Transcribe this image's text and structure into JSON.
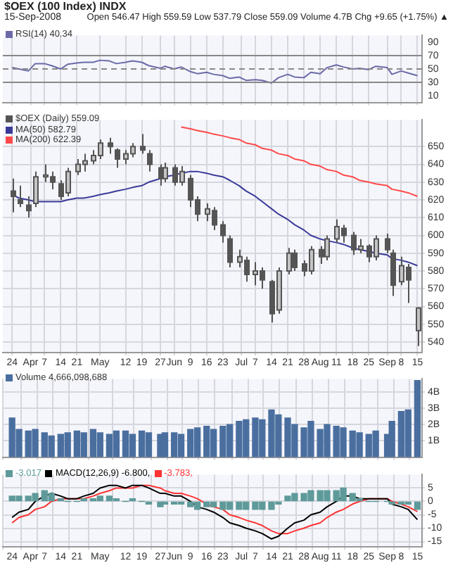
{
  "chart_data": [
    {
      "type": "line",
      "title": "$OEX (100 Index) INDX",
      "subtitle": "15-Sep-2008",
      "annotations": [
        "Open 546.47  High 559.59  Low 537.79  Close 559.09  Volume 4.7B  Chg +9.65 (+1.75%) ▲"
      ],
      "x": [
        "2008-03-24",
        "2008-03-27",
        "2008-03-31",
        "2008-04-03",
        "2008-04-07",
        "2008-04-10",
        "2008-04-14",
        "2008-04-17",
        "2008-04-21",
        "2008-04-24",
        "2008-04-28",
        "2008-05-01",
        "2008-05-05",
        "2008-05-08",
        "2008-05-12",
        "2008-05-15",
        "2008-05-19",
        "2008-05-22",
        "2008-05-27",
        "2008-05-29",
        "2008-06-02",
        "2008-06-05",
        "2008-06-09",
        "2008-06-12",
        "2008-06-16",
        "2008-06-19",
        "2008-06-23",
        "2008-06-26",
        "2008-06-30",
        "2008-07-03",
        "2008-07-07",
        "2008-07-10",
        "2008-07-14",
        "2008-07-17",
        "2008-07-21",
        "2008-07-24",
        "2008-07-28",
        "2008-07-31",
        "2008-08-04",
        "2008-08-07",
        "2008-08-11",
        "2008-08-14",
        "2008-08-18",
        "2008-08-21",
        "2008-08-25",
        "2008-08-28",
        "2008-09-02",
        "2008-09-04",
        "2008-09-08",
        "2008-09-11",
        "2008-09-15"
      ],
      "series": [
        {
          "name": "RSI(14) 40.34",
          "color": "#6a6aa8",
          "values": [
            52,
            50,
            47,
            58,
            58,
            55,
            50,
            57,
            59,
            60,
            60,
            63,
            62,
            58,
            60,
            62,
            60,
            55,
            51,
            54,
            50,
            53,
            46,
            43,
            45,
            42,
            40,
            36,
            38,
            33,
            34,
            33,
            29,
            37,
            42,
            38,
            37,
            45,
            43,
            52,
            56,
            53,
            50,
            51,
            49,
            54,
            52,
            42,
            47,
            44,
            40
          ]
        }
      ],
      "xlim": [
        "2008-03-20",
        "2008-09-17"
      ],
      "xticks": [
        {
          "value": "2008-03-24",
          "label": null
        },
        {
          "value": "2008-04-01",
          "label": null
        },
        {
          "value": "2008-04-07",
          "label": null
        },
        {
          "value": "2008-04-14",
          "label": null
        },
        {
          "value": "2008-04-21",
          "label": null
        },
        {
          "value": "2008-05-01",
          "label": null
        },
        {
          "value": "2008-05-12",
          "label": null
        },
        {
          "value": "2008-05-19",
          "label": null
        },
        {
          "value": "2008-05-27",
          "label": null
        },
        {
          "value": "2008-06-02",
          "label": null
        },
        {
          "value": "2008-06-09",
          "label": null
        },
        {
          "value": "2008-06-16",
          "label": null
        },
        {
          "value": "2008-06-23",
          "label": null
        },
        {
          "value": "2008-07-01",
          "label": null
        },
        {
          "value": "2008-07-07",
          "label": null
        },
        {
          "value": "2008-07-14",
          "label": null
        },
        {
          "value": "2008-07-21",
          "label": null
        },
        {
          "value": "2008-07-28",
          "label": null
        },
        {
          "value": "2008-08-04",
          "label": null
        },
        {
          "value": "2008-08-11",
          "label": null
        },
        {
          "value": "2008-08-18",
          "label": null
        },
        {
          "value": "2008-08-25",
          "label": null
        },
        {
          "value": "2008-09-02",
          "label": null
        },
        {
          "value": "2008-09-08",
          "label": null
        },
        {
          "value": "2008-09-15",
          "label": null
        }
      ],
      "ylim": [
        0,
        100
      ],
      "yticks": [
        10,
        30,
        50,
        70,
        90
      ],
      "ref_lines": [
        {
          "axis": "y",
          "value": 70,
          "color": "#888888",
          "line_style": "solid"
        },
        {
          "axis": "y",
          "value": 50,
          "color": "#888888",
          "line_style": "dashed"
        },
        {
          "axis": "y",
          "value": 30,
          "color": "#888888",
          "line_style": "solid"
        }
      ],
      "grid": "x",
      "legend": "top left",
      "tick_labels": "y"
    },
    {
      "type": "candlestick",
      "title": "$OEX (Daily) 559.09",
      "color": "#555555",
      "colors": [
        "#555555",
        "#555555",
        "#555555",
        "#c4c4c4",
        "#c4c4c4",
        "#555555",
        "#555555",
        "#c4c4c4",
        "#c4c4c4",
        "#c4c4c4",
        "#c4c4c4",
        "#c4c4c4",
        "#555555",
        "#555555",
        "#c4c4c4",
        "#c4c4c4",
        "#555555",
        "#555555",
        "#555555",
        "#c4c4c4",
        "#555555",
        "#c4c4c4",
        "#555555",
        "#555555",
        "#c4c4c4",
        "#555555",
        "#555555",
        "#555555",
        "#c4c4c4",
        "#555555",
        "#c4c4c4",
        "#555555",
        "#555555",
        "#c4c4c4",
        "#c4c4c4",
        "#555555",
        "#555555",
        "#c4c4c4",
        "#555555",
        "#c4c4c4",
        "#c4c4c4",
        "#555555",
        "#555555",
        "#c4c4c4",
        "#555555",
        "#c4c4c4",
        "#555555",
        "#555555",
        "#c4c4c4",
        "#555555",
        "#c4c4c4"
      ],
      "x": [
        "2008-03-24",
        "2008-03-27",
        "2008-03-31",
        "2008-04-03",
        "2008-04-07",
        "2008-04-10",
        "2008-04-14",
        "2008-04-17",
        "2008-04-21",
        "2008-04-24",
        "2008-04-28",
        "2008-05-01",
        "2008-05-05",
        "2008-05-08",
        "2008-05-12",
        "2008-05-15",
        "2008-05-19",
        "2008-05-22",
        "2008-05-27",
        "2008-05-29",
        "2008-06-02",
        "2008-06-05",
        "2008-06-09",
        "2008-06-12",
        "2008-06-16",
        "2008-06-19",
        "2008-06-23",
        "2008-06-26",
        "2008-06-30",
        "2008-07-03",
        "2008-07-07",
        "2008-07-10",
        "2008-07-14",
        "2008-07-17",
        "2008-07-21",
        "2008-07-24",
        "2008-07-28",
        "2008-07-31",
        "2008-08-04",
        "2008-08-07",
        "2008-08-11",
        "2008-08-14",
        "2008-08-18",
        "2008-08-21",
        "2008-08-25",
        "2008-08-28",
        "2008-09-02",
        "2008-09-04",
        "2008-09-08",
        "2008-09-11",
        "2008-09-15"
      ],
      "ohlc": [
        [
          625,
          632,
          613,
          622
        ],
        [
          620,
          628,
          616,
          618
        ],
        [
          617,
          622,
          610,
          614
        ],
        [
          618,
          636,
          616,
          633
        ],
        [
          633,
          640,
          630,
          634
        ],
        [
          633,
          636,
          626,
          630
        ],
        [
          629,
          631,
          620,
          622
        ],
        [
          624,
          638,
          622,
          636
        ],
        [
          636,
          643,
          634,
          640
        ],
        [
          640,
          646,
          636,
          642
        ],
        [
          642,
          648,
          640,
          645
        ],
        [
          645,
          654,
          643,
          652
        ],
        [
          652,
          655,
          646,
          650
        ],
        [
          648,
          649,
          638,
          643
        ],
        [
          643,
          648,
          640,
          646
        ],
        [
          646,
          652,
          644,
          650
        ],
        [
          650,
          657,
          646,
          648
        ],
        [
          646,
          648,
          636,
          640
        ],
        [
          638,
          640,
          628,
          632
        ],
        [
          632,
          641,
          630,
          638
        ],
        [
          638,
          640,
          628,
          630
        ],
        [
          630,
          639,
          628,
          636
        ],
        [
          632,
          634,
          616,
          620
        ],
        [
          620,
          622,
          608,
          612
        ],
        [
          612,
          618,
          608,
          615
        ],
        [
          614,
          616,
          603,
          606
        ],
        [
          606,
          608,
          596,
          600
        ],
        [
          598,
          600,
          582,
          585
        ],
        [
          585,
          592,
          582,
          588
        ],
        [
          586,
          588,
          574,
          578
        ],
        [
          578,
          585,
          572,
          580
        ],
        [
          580,
          582,
          570,
          575
        ],
        [
          574,
          575,
          551,
          556
        ],
        [
          558,
          582,
          556,
          580
        ],
        [
          580,
          593,
          578,
          590
        ],
        [
          590,
          592,
          580,
          582
        ],
        [
          584,
          586,
          577,
          580
        ],
        [
          580,
          594,
          578,
          592
        ],
        [
          592,
          594,
          584,
          588
        ],
        [
          588,
          600,
          586,
          598
        ],
        [
          598,
          609,
          596,
          605
        ],
        [
          604,
          606,
          596,
          600
        ],
        [
          600,
          602,
          589,
          592
        ],
        [
          592,
          598,
          590,
          594
        ],
        [
          594,
          595,
          585,
          588
        ],
        [
          588,
          600,
          586,
          598
        ],
        [
          598,
          601,
          590,
          592
        ],
        [
          590,
          592,
          566,
          572
        ],
        [
          574,
          588,
          572,
          583
        ],
        [
          582,
          584,
          562,
          575
        ],
        [
          546.47,
          559.59,
          537.79,
          559.09
        ]
      ],
      "series": [
        {
          "name": "MA(50) 582.79",
          "type": "line",
          "color": "#3a3a9a",
          "values": [
            623,
            621,
            620,
            619,
            619,
            619,
            619,
            620,
            621,
            621,
            622,
            623,
            624,
            625,
            626,
            627,
            628,
            630,
            632,
            633,
            634,
            635,
            636,
            636,
            635,
            634,
            633,
            631,
            628,
            625,
            622,
            619,
            615,
            612,
            609,
            606,
            603,
            600,
            598,
            597,
            596,
            595,
            593,
            592,
            591,
            590,
            589,
            587,
            586,
            585,
            583
          ]
        },
        {
          "name": "MA(200) 622.39",
          "type": "line",
          "color": "#ff4a4a",
          "values": [
            null,
            null,
            null,
            null,
            null,
            null,
            null,
            null,
            null,
            null,
            null,
            null,
            null,
            null,
            null,
            null,
            null,
            null,
            null,
            null,
            null,
            661,
            660,
            659,
            658,
            657,
            656,
            655,
            654,
            652,
            651,
            649,
            648,
            646,
            645,
            643,
            642,
            640,
            639,
            637,
            636,
            634,
            633,
            631,
            630,
            629,
            628,
            626,
            625,
            624,
            622
          ]
        }
      ],
      "xlim": [
        "2008-03-20",
        "2008-09-17"
      ],
      "xticks": [
        {
          "value": "2008-03-24",
          "label": "24"
        },
        {
          "value": "2008-04-01",
          "label": "Apr"
        },
        {
          "value": "2008-04-07",
          "label": "7"
        },
        {
          "value": "2008-04-14",
          "label": "14"
        },
        {
          "value": "2008-04-21",
          "label": "21"
        },
        {
          "value": "2008-05-01",
          "label": "May"
        },
        {
          "value": "2008-05-12",
          "label": "12"
        },
        {
          "value": "2008-05-19",
          "label": "19"
        },
        {
          "value": "2008-05-27",
          "label": "27"
        },
        {
          "value": "2008-06-02",
          "label": "Jun"
        },
        {
          "value": "2008-06-09",
          "label": "9"
        },
        {
          "value": "2008-06-16",
          "label": "16"
        },
        {
          "value": "2008-06-23",
          "label": "23"
        },
        {
          "value": "2008-07-01",
          "label": "Jul"
        },
        {
          "value": "2008-07-07",
          "label": "7"
        },
        {
          "value": "2008-07-14",
          "label": "14"
        },
        {
          "value": "2008-07-21",
          "label": "21"
        },
        {
          "value": "2008-07-28",
          "label": "28"
        },
        {
          "value": "2008-08-04",
          "label": "Aug"
        },
        {
          "value": "2008-08-11",
          "label": "11"
        },
        {
          "value": "2008-08-18",
          "label": "18"
        },
        {
          "value": "2008-08-25",
          "label": "25"
        },
        {
          "value": "2008-09-02",
          "label": "Sep"
        },
        {
          "value": "2008-09-08",
          "label": "8"
        },
        {
          "value": "2008-09-15",
          "label": "15"
        }
      ],
      "ylim": [
        534,
        665
      ],
      "yticks": [
        540,
        550,
        560,
        570,
        580,
        590,
        600,
        610,
        620,
        630,
        640,
        650
      ],
      "grid": true,
      "legend": "top left"
    },
    {
      "type": "bar",
      "x": [
        "2008-03-24",
        "2008-03-27",
        "2008-03-31",
        "2008-04-03",
        "2008-04-07",
        "2008-04-10",
        "2008-04-14",
        "2008-04-17",
        "2008-04-21",
        "2008-04-24",
        "2008-04-28",
        "2008-05-01",
        "2008-05-05",
        "2008-05-08",
        "2008-05-12",
        "2008-05-15",
        "2008-05-19",
        "2008-05-22",
        "2008-05-27",
        "2008-05-29",
        "2008-06-02",
        "2008-06-05",
        "2008-06-09",
        "2008-06-12",
        "2008-06-16",
        "2008-06-19",
        "2008-06-23",
        "2008-06-26",
        "2008-06-30",
        "2008-07-03",
        "2008-07-07",
        "2008-07-10",
        "2008-07-14",
        "2008-07-17",
        "2008-07-21",
        "2008-07-24",
        "2008-07-28",
        "2008-07-31",
        "2008-08-04",
        "2008-08-07",
        "2008-08-11",
        "2008-08-14",
        "2008-08-18",
        "2008-08-21",
        "2008-08-25",
        "2008-08-28",
        "2008-09-02",
        "2008-09-04",
        "2008-09-08",
        "2008-09-11",
        "2008-09-15"
      ],
      "series": [
        {
          "name": "Volume 4,666,098,688",
          "color": "#4a6f9f",
          "values": [
            2.4,
            1.7,
            1.6,
            1.7,
            1.5,
            1.3,
            1.4,
            1.5,
            1.6,
            1.5,
            1.7,
            1.5,
            1.4,
            1.6,
            1.6,
            1.4,
            1.6,
            1.5,
            1.4,
            1.5,
            1.5,
            1.4,
            1.7,
            1.8,
            1.9,
            1.7,
            1.9,
            2.0,
            2.2,
            2.3,
            2.4,
            2.3,
            2.9,
            2.6,
            2.4,
            2.0,
            1.8,
            2.2,
            1.7,
            2.0,
            1.9,
            1.8,
            1.6,
            1.5,
            1.4,
            1.6,
            1.4,
            2.2,
            2.8,
            2.9,
            4.7
          ]
        }
      ],
      "xlim": [
        "2008-03-20",
        "2008-09-17"
      ],
      "xticks": [
        {
          "value": "2008-03-24",
          "label": null
        },
        {
          "value": "2008-04-01",
          "label": null
        },
        {
          "value": "2008-04-07",
          "label": null
        },
        {
          "value": "2008-04-14",
          "label": null
        },
        {
          "value": "2008-04-21",
          "label": null
        },
        {
          "value": "2008-05-01",
          "label": null
        },
        {
          "value": "2008-05-12",
          "label": null
        },
        {
          "value": "2008-05-19",
          "label": null
        },
        {
          "value": "2008-05-27",
          "label": null
        },
        {
          "value": "2008-06-02",
          "label": null
        },
        {
          "value": "2008-06-09",
          "label": null
        },
        {
          "value": "2008-06-16",
          "label": null
        },
        {
          "value": "2008-06-23",
          "label": null
        },
        {
          "value": "2008-07-01",
          "label": null
        },
        {
          "value": "2008-07-07",
          "label": null
        },
        {
          "value": "2008-07-14",
          "label": null
        },
        {
          "value": "2008-07-21",
          "label": null
        },
        {
          "value": "2008-07-28",
          "label": null
        },
        {
          "value": "2008-08-04",
          "label": null
        },
        {
          "value": "2008-08-11",
          "label": null
        },
        {
          "value": "2008-08-18",
          "label": null
        },
        {
          "value": "2008-08-25",
          "label": null
        },
        {
          "value": "2008-09-02",
          "label": null
        },
        {
          "value": "2008-09-08",
          "label": null
        },
        {
          "value": "2008-09-15",
          "label": null
        }
      ],
      "ylim": [
        0,
        4.8
      ],
      "yticks": [
        {
          "value": 1,
          "label": "1B"
        },
        {
          "value": 2,
          "label": "2B"
        },
        {
          "value": 3,
          "label": "3B"
        },
        {
          "value": 4,
          "label": "4B"
        }
      ],
      "grid": true,
      "legend": "top left",
      "tick_labels": "y"
    },
    {
      "type": "line",
      "x": [
        "2008-03-24",
        "2008-03-27",
        "2008-03-31",
        "2008-04-03",
        "2008-04-07",
        "2008-04-10",
        "2008-04-14",
        "2008-04-17",
        "2008-04-21",
        "2008-04-24",
        "2008-04-28",
        "2008-05-01",
        "2008-05-05",
        "2008-05-08",
        "2008-05-12",
        "2008-05-15",
        "2008-05-19",
        "2008-05-22",
        "2008-05-27",
        "2008-05-29",
        "2008-06-02",
        "2008-06-05",
        "2008-06-09",
        "2008-06-12",
        "2008-06-16",
        "2008-06-19",
        "2008-06-23",
        "2008-06-26",
        "2008-06-30",
        "2008-07-03",
        "2008-07-07",
        "2008-07-10",
        "2008-07-14",
        "2008-07-17",
        "2008-07-21",
        "2008-07-24",
        "2008-07-28",
        "2008-07-31",
        "2008-08-04",
        "2008-08-07",
        "2008-08-11",
        "2008-08-14",
        "2008-08-18",
        "2008-08-21",
        "2008-08-25",
        "2008-08-28",
        "2008-09-02",
        "2008-09-04",
        "2008-09-08",
        "2008-09-11",
        "2008-09-15"
      ],
      "series": [
        {
          "name": "-3.017",
          "type": "bar",
          "color": "#5f9a9a",
          "values": [
            2,
            2,
            2,
            3,
            4,
            3,
            1,
            0,
            0,
            1,
            1,
            2,
            2,
            1,
            0,
            1,
            0,
            -1,
            -2,
            -1,
            -1,
            -1,
            -2,
            -3,
            -2,
            -2,
            -3,
            -3,
            -3,
            -3,
            -3,
            -3,
            -3,
            -1,
            2,
            3,
            3,
            4,
            4,
            4,
            4,
            5,
            3,
            1,
            0,
            0,
            0,
            -1,
            -1,
            -1,
            -3
          ]
        },
        {
          "name": "MACD(12,26,9) -6.800,",
          "type": "line",
          "color": "#000000",
          "values": [
            -6,
            -4,
            -3,
            0,
            2,
            3,
            2,
            1,
            1,
            2,
            3,
            5,
            6,
            6,
            5,
            6,
            6,
            5,
            3,
            3,
            2,
            2,
            0,
            -2,
            -3,
            -4,
            -6,
            -8,
            -9,
            -10,
            -11,
            -12,
            -14,
            -13,
            -10,
            -8,
            -7,
            -5,
            -4,
            -2,
            0,
            2,
            2,
            1,
            1,
            1,
            1,
            -1,
            -2,
            -3,
            -6.8
          ]
        },
        {
          "name": "-3.783,",
          "type": "line",
          "color": "#ff3333",
          "values": [
            -8,
            -6,
            -5,
            -3,
            -2,
            0,
            1,
            1,
            1,
            1,
            2,
            3,
            4,
            5,
            5,
            5,
            6,
            6,
            5,
            4,
            3,
            3,
            2,
            1,
            -1,
            -2,
            -3,
            -5,
            -6,
            -7,
            -8,
            -9,
            -11,
            -12,
            -12,
            -11,
            -10,
            -9,
            -8,
            -6,
            -4,
            -3,
            -1,
            0,
            1,
            1,
            1,
            0,
            -1,
            -2,
            -3.8
          ]
        }
      ],
      "xlim": [
        "2008-03-20",
        "2008-09-17"
      ],
      "xticks": [
        {
          "value": "2008-03-24",
          "label": "24"
        },
        {
          "value": "2008-04-01",
          "label": "Apr"
        },
        {
          "value": "2008-04-07",
          "label": "7"
        },
        {
          "value": "2008-04-14",
          "label": "14"
        },
        {
          "value": "2008-04-21",
          "label": "21"
        },
        {
          "value": "2008-05-01",
          "label": "May"
        },
        {
          "value": "2008-05-12",
          "label": "12"
        },
        {
          "value": "2008-05-19",
          "label": "19"
        },
        {
          "value": "2008-05-27",
          "label": "27"
        },
        {
          "value": "2008-06-02",
          "label": "Jun"
        },
        {
          "value": "2008-06-09",
          "label": "9"
        },
        {
          "value": "2008-06-16",
          "label": "16"
        },
        {
          "value": "2008-06-23",
          "label": "23"
        },
        {
          "value": "2008-07-01",
          "label": "Jul"
        },
        {
          "value": "2008-07-07",
          "label": "7"
        },
        {
          "value": "2008-07-14",
          "label": "14"
        },
        {
          "value": "2008-07-21",
          "label": "21"
        },
        {
          "value": "2008-07-28",
          "label": "28"
        },
        {
          "value": "2008-08-04",
          "label": "Aug"
        },
        {
          "value": "2008-08-11",
          "label": "11"
        },
        {
          "value": "2008-08-18",
          "label": "18"
        },
        {
          "value": "2008-08-25",
          "label": "25"
        },
        {
          "value": "2008-09-02",
          "label": "Sep"
        },
        {
          "value": "2008-09-08",
          "label": "8"
        },
        {
          "value": "2008-09-15",
          "label": "15"
        }
      ],
      "ylim": [
        -17,
        10
      ],
      "yticks": [
        -15,
        -10,
        -5,
        0,
        5
      ],
      "grid": true,
      "legend": "top left"
    }
  ]
}
